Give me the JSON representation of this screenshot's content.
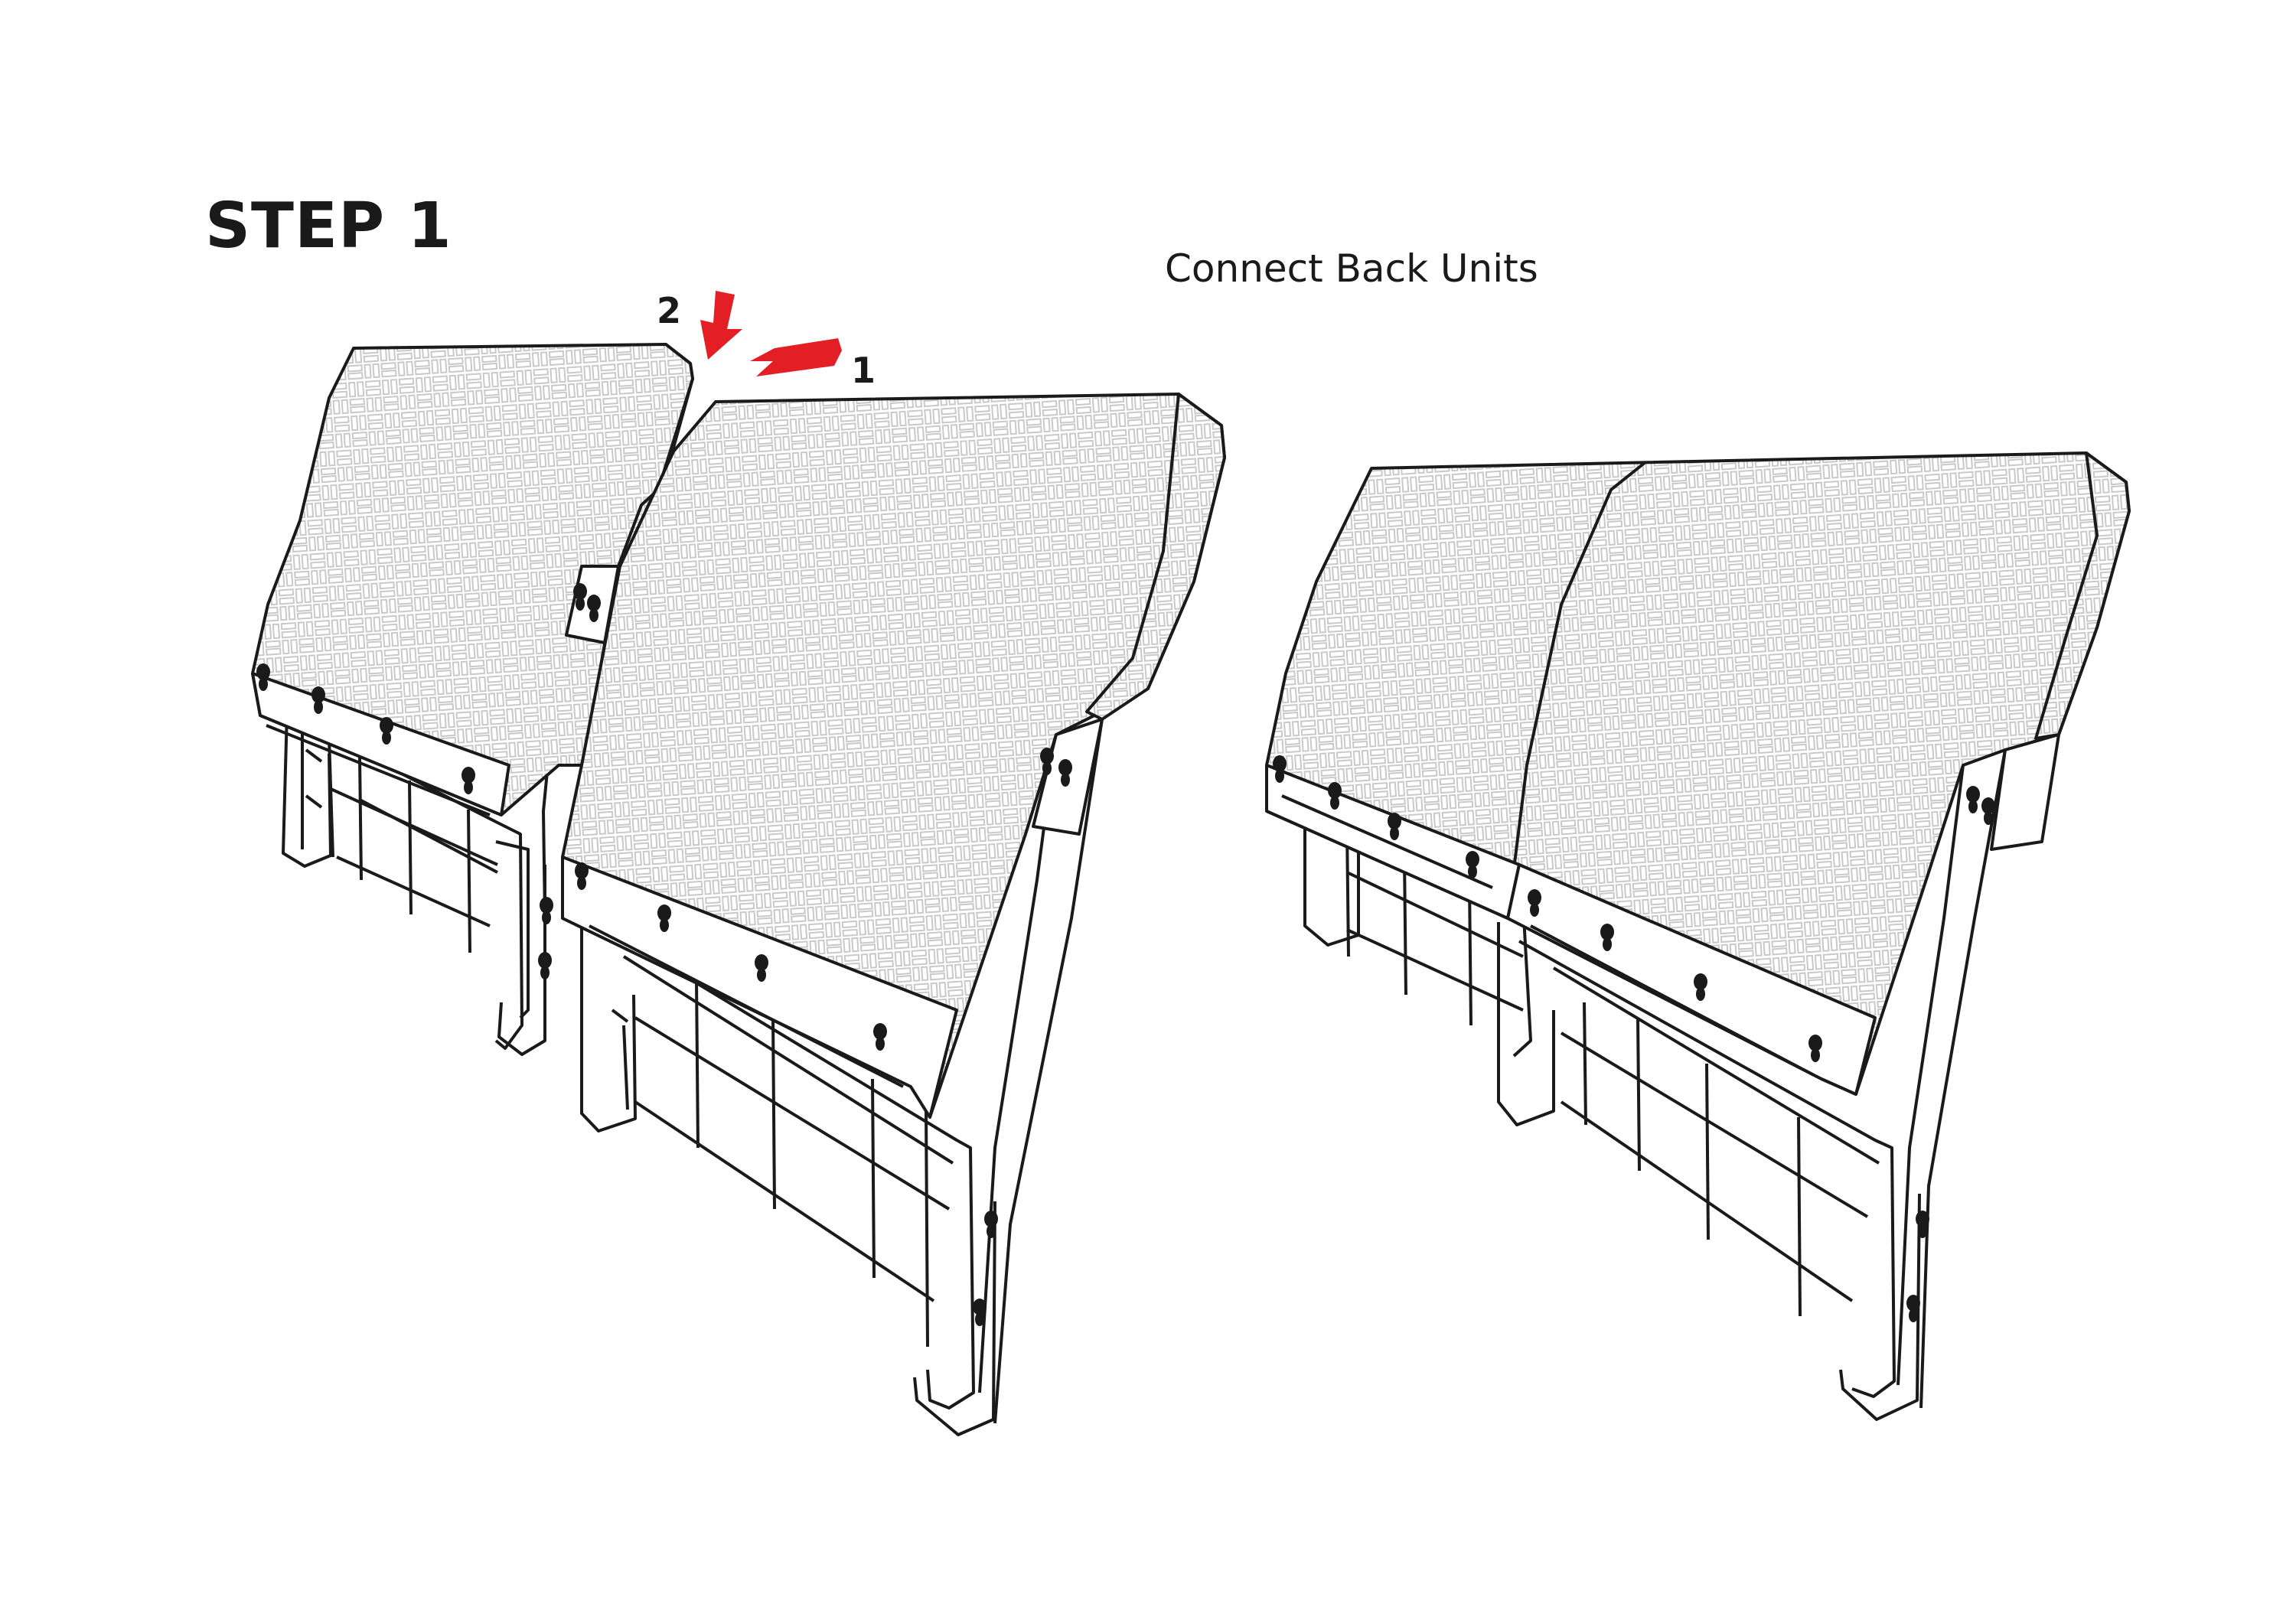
{
  "instruction": {
    "step_label": "STEP 1",
    "caption": "Connect Back Units"
  },
  "callouts": {
    "first": "1",
    "second": "2"
  },
  "colors": {
    "line": "#1a1a1a",
    "arrow": "#e31e24",
    "weave": "#c9c9c9",
    "background": "#ffffff"
  }
}
